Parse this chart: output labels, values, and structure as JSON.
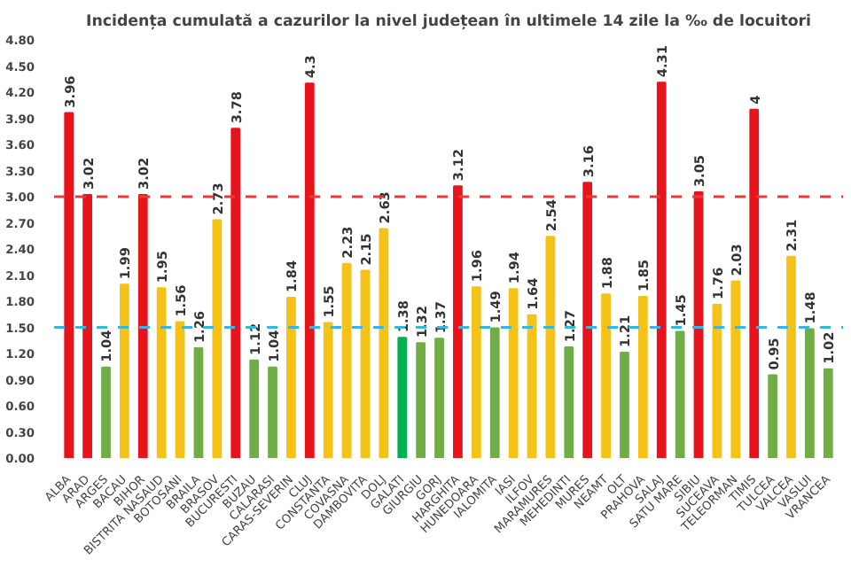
{
  "chart_data": {
    "type": "bar",
    "title": "Incidența cumulată a cazurilor la nivel județean în ultimele 14 zile la ‰ de locuitori",
    "categories": [
      "ALBA",
      "ARAD",
      "ARGES",
      "BACAU",
      "BIHOR",
      "BISTRITA NASAUD",
      "BOTOSANI",
      "BRAILA",
      "BRASOV",
      "BUCURESTI",
      "BUZAU",
      "CALARASI",
      "CARAS-SEVERIN",
      "CLUJ",
      "CONSTANTA",
      "COVASNA",
      "DAMBOVITA",
      "DOLJ",
      "GALATI",
      "GIURGIU",
      "GORJ",
      "HARGHITA",
      "HUNEDOARA",
      "IALOMITA",
      "IASI",
      "ILFOV",
      "MARAMURES",
      "MEHEDINTI",
      "MURES",
      "NEAMT",
      "OLT",
      "PRAHOVA",
      "SALAJ",
      "SATU MARE",
      "SIBIU",
      "SUCEAVA",
      "TELEORMAN",
      "TIMIS",
      "TULCEA",
      "VALCEA",
      "VASLUI",
      "VRANCEA"
    ],
    "values": [
      3.96,
      3.02,
      1.04,
      1.99,
      3.02,
      1.95,
      1.56,
      1.26,
      2.73,
      3.78,
      1.12,
      1.04,
      1.84,
      4.3,
      1.55,
      2.23,
      2.15,
      2.63,
      1.38,
      1.32,
      1.37,
      3.12,
      1.96,
      1.49,
      1.94,
      1.64,
      2.54,
      1.27,
      3.16,
      1.88,
      1.21,
      1.85,
      4.31,
      1.45,
      3.05,
      1.76,
      2.03,
      4,
      0.95,
      2.31,
      1.48,
      1.02
    ],
    "colors": [
      "#e8141b",
      "#e8141b",
      "#70ad47",
      "#f5c218",
      "#e8141b",
      "#f5c218",
      "#f5c218",
      "#70ad47",
      "#f5c218",
      "#e8141b",
      "#70ad47",
      "#70ad47",
      "#f5c218",
      "#e8141b",
      "#f5c218",
      "#f5c218",
      "#f5c218",
      "#f5c218",
      "#00b050",
      "#70ad47",
      "#70ad47",
      "#e8141b",
      "#f5c218",
      "#70ad47",
      "#f5c218",
      "#f5c218",
      "#f5c218",
      "#70ad47",
      "#e8141b",
      "#f5c218",
      "#70ad47",
      "#f5c218",
      "#e8141b",
      "#70ad47",
      "#e8141b",
      "#f5c218",
      "#f5c218",
      "#e8141b",
      "#70ad47",
      "#f5c218",
      "#70ad47",
      "#70ad47"
    ],
    "ylim": [
      0,
      4.8
    ],
    "yticks": [
      {
        "value": 0,
        "label": "0.00"
      },
      {
        "value": 0.3,
        "label": "0.30"
      },
      {
        "value": 0.6,
        "label": "0.60"
      },
      {
        "value": 0.9,
        "label": "0.90"
      },
      {
        "value": 1.2,
        "label": "1.20"
      },
      {
        "value": 1.5,
        "label": "1.50"
      },
      {
        "value": 1.8,
        "label": "1.80"
      },
      {
        "value": 2.1,
        "label": "2.10"
      },
      {
        "value": 2.4,
        "label": "2.40"
      },
      {
        "value": 2.7,
        "label": "2.70"
      },
      {
        "value": 3.0,
        "label": "3.00"
      },
      {
        "value": 3.3,
        "label": "3.30"
      },
      {
        "value": 3.6,
        "label": "3.60"
      },
      {
        "value": 3.9,
        "label": "3.90"
      },
      {
        "value": 4.2,
        "label": "4.20"
      },
      {
        "value": 4.5,
        "label": "4.50"
      },
      {
        "value": 4.8,
        "label": "4.80"
      }
    ],
    "ref_lines": [
      {
        "axis": "y",
        "value": 3.0,
        "color": "#e83a3a",
        "line_style": "dashed"
      },
      {
        "axis": "y",
        "value": 1.5,
        "color": "#3ab4e0",
        "line_style": "dashed"
      }
    ],
    "data_labels": true,
    "grid": false
  }
}
